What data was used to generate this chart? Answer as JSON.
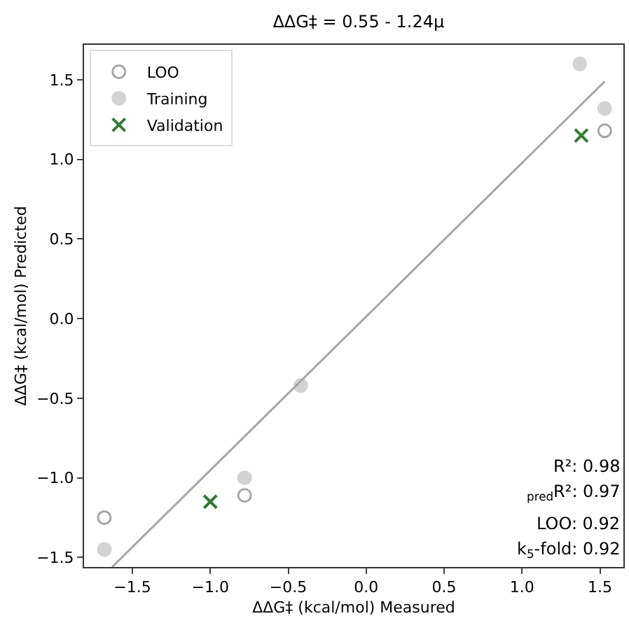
{
  "chart_data": {
    "type": "scatter",
    "title": "ΔΔG‡ = 0.55 - 1.24μ",
    "xlabel": "ΔΔG‡ (kcal/mol) Measured",
    "ylabel": "ΔΔG‡ (kcal/mol) Predicted",
    "xlim": [
      -1.81,
      1.65
    ],
    "ylim": [
      -1.56,
      1.72
    ],
    "xticks": [
      {
        "value": -1.5,
        "label": "−1.5"
      },
      {
        "value": -1,
        "label": "−1.0"
      },
      {
        "value": -0.5,
        "label": "−0.5"
      },
      {
        "value": 0,
        "label": "0.0"
      },
      {
        "value": 0.5,
        "label": "0.5"
      },
      {
        "value": 1,
        "label": "1.0"
      },
      {
        "value": 1.5,
        "label": "1.5"
      }
    ],
    "yticks": [
      {
        "value": -1.5,
        "label": "−1.5"
      },
      {
        "value": -1,
        "label": "−1.0"
      },
      {
        "value": -0.5,
        "label": "−0.5"
      },
      {
        "value": 0,
        "label": "0.0"
      },
      {
        "value": 0.5,
        "label": "0.5"
      },
      {
        "value": 1,
        "label": "1.0"
      },
      {
        "value": 1.5,
        "label": "1.5"
      }
    ],
    "series": [
      {
        "name": "LOO",
        "color": "#a6a6a6",
        "marker": "circle-open",
        "x": [
          1.53,
          -0.78,
          -1.68
        ],
        "values": [
          1.18,
          -1.11,
          -1.25
        ]
      },
      {
        "name": "Training",
        "color": "#d3d3d3",
        "marker": "circle",
        "x": [
          1.37,
          1.53,
          -0.42,
          -0.78,
          -1.68
        ],
        "values": [
          1.6,
          1.32,
          -0.42,
          -1.0,
          -1.45
        ]
      },
      {
        "name": "Validation",
        "color": "#2e7d32",
        "marker": "cross",
        "x": [
          1.38,
          -1.0
        ],
        "values": [
          1.15,
          -1.15
        ]
      },
      {
        "type": "line",
        "color": "#a6a6a6",
        "x": [
          -1.63,
          1.53
        ],
        "values": [
          -1.56,
          1.49
        ]
      }
    ],
    "annotations": [
      "R²: 0.98",
      "$_{pred}$R²: 0.97",
      "LOO: 0.92",
      "k$_{5}$-fold: 0.92"
    ],
    "legend": "top left"
  }
}
